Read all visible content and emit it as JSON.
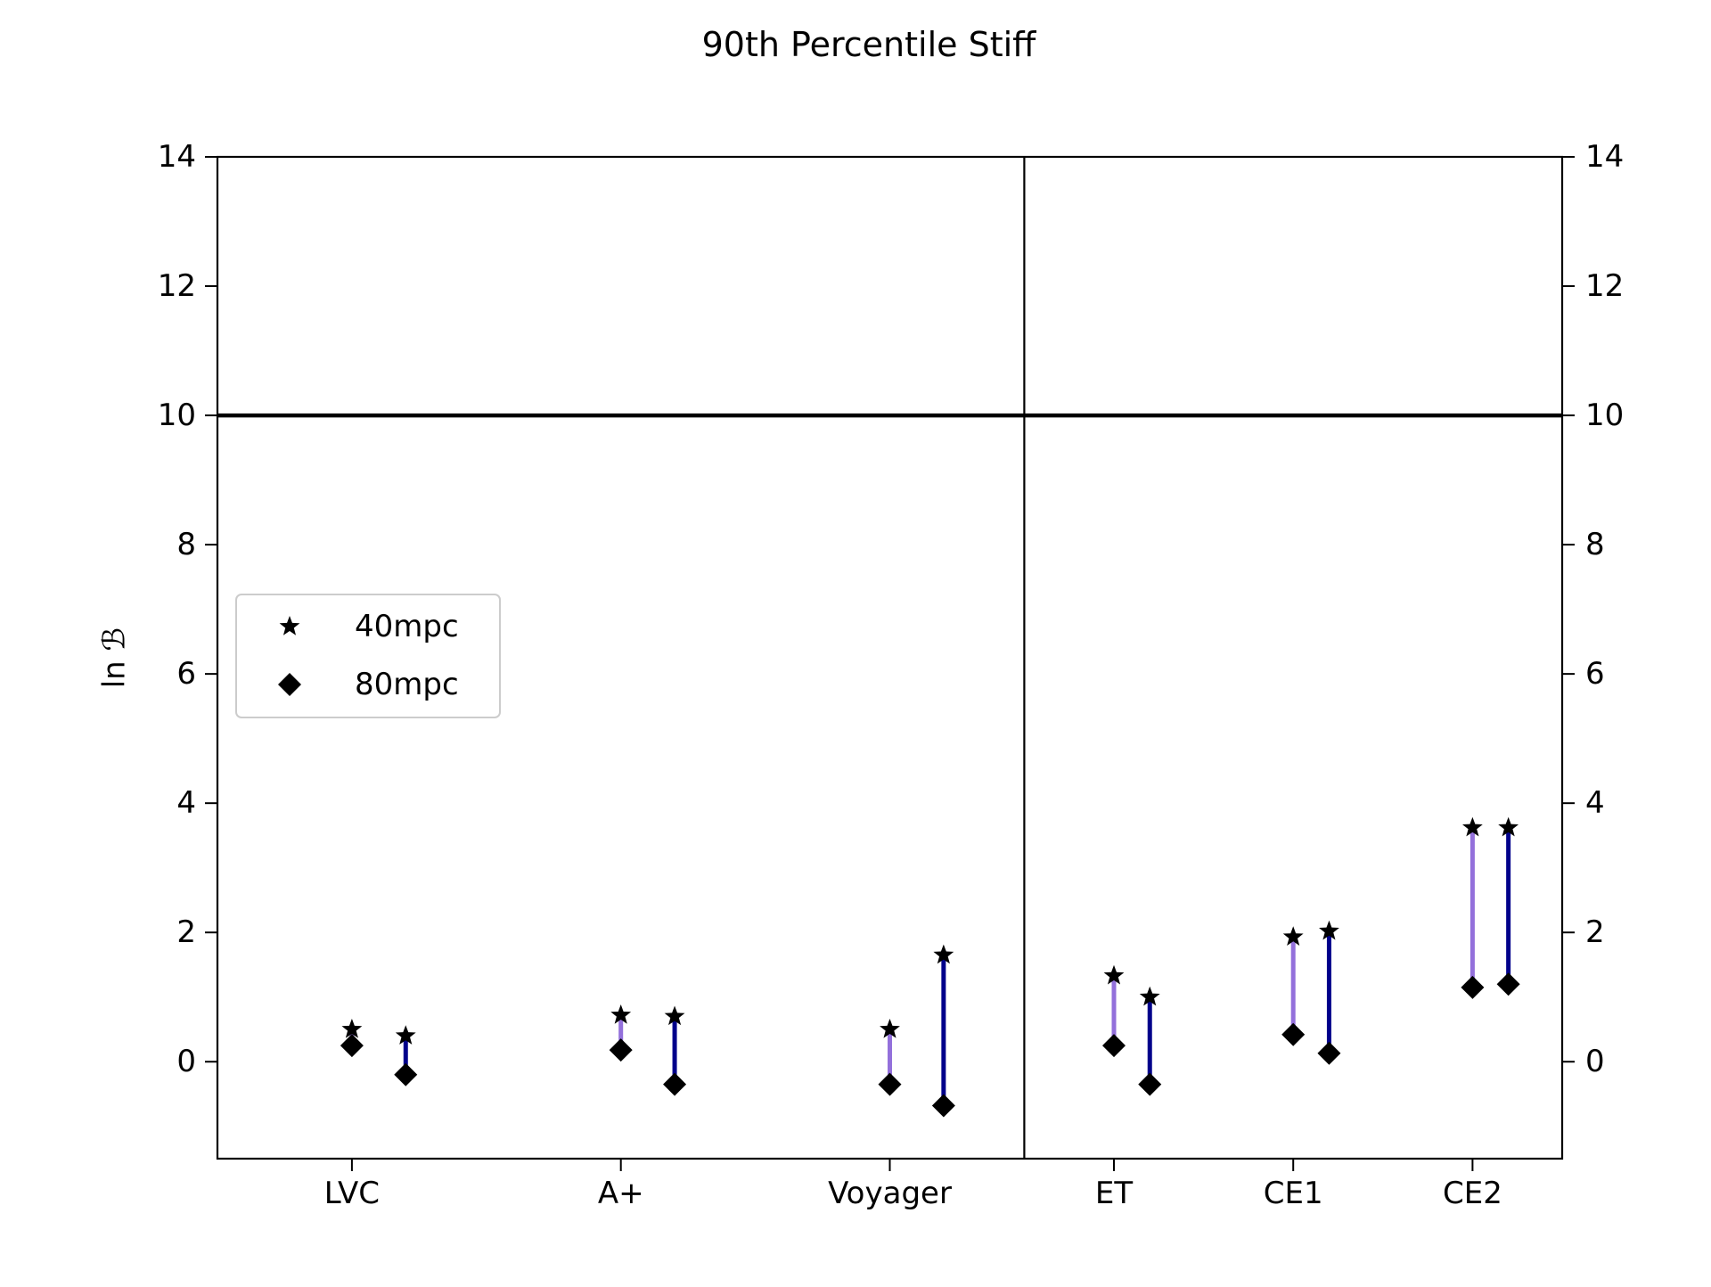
{
  "chart_data": {
    "type": "scatter",
    "title": "90th Percentile Stiff",
    "ylabel": "ln ℬ",
    "xlabel": "",
    "ylim": [
      -1.5,
      14
    ],
    "yticks": [
      0,
      2,
      4,
      6,
      8,
      10,
      12,
      14
    ],
    "right_axis_ticks": true,
    "x_range": [
      -0.75,
      6.75
    ],
    "divider_x": 3.75,
    "reference_line_y": 10,
    "categories": [
      "LVC",
      "A+",
      "Voyager",
      "ET",
      "CE1",
      "CE2"
    ],
    "category_x": [
      0,
      1.5,
      3,
      4.25,
      5.25,
      6.25
    ],
    "legend": {
      "position": "center-left",
      "entries": [
        {
          "label": "40mpc",
          "marker": "star"
        },
        {
          "label": "80mpc",
          "marker": "diamond"
        }
      ]
    },
    "colors": {
      "first_connector": "#9370db",
      "second_connector": "#00008b",
      "markers": "#000000"
    },
    "pairs": [
      {
        "category": "LVC",
        "x": 0.0,
        "star": 0.5,
        "diamond": 0.25,
        "color": "#9370db"
      },
      {
        "category": "LVC",
        "x": 0.3,
        "star": 0.4,
        "diamond": -0.2,
        "color": "#00008b"
      },
      {
        "category": "A+",
        "x": 1.5,
        "star": 0.72,
        "diamond": 0.18,
        "color": "#9370db"
      },
      {
        "category": "A+",
        "x": 1.8,
        "star": 0.7,
        "diamond": -0.35,
        "color": "#00008b"
      },
      {
        "category": "Voyager",
        "x": 3.0,
        "star": 0.5,
        "diamond": -0.35,
        "color": "#9370db"
      },
      {
        "category": "Voyager",
        "x": 3.3,
        "star": 1.65,
        "diamond": -0.68,
        "color": "#00008b"
      },
      {
        "category": "ET",
        "x": 4.25,
        "star": 1.33,
        "diamond": 0.25,
        "color": "#9370db"
      },
      {
        "category": "ET",
        "x": 4.45,
        "star": 1.0,
        "diamond": -0.35,
        "color": "#00008b"
      },
      {
        "category": "CE1",
        "x": 5.25,
        "star": 1.93,
        "diamond": 0.42,
        "color": "#9370db"
      },
      {
        "category": "CE1",
        "x": 5.45,
        "star": 2.02,
        "diamond": 0.13,
        "color": "#00008b"
      },
      {
        "category": "CE2",
        "x": 6.25,
        "star": 3.62,
        "diamond": 1.15,
        "color": "#9370db"
      },
      {
        "category": "CE2",
        "x": 6.45,
        "star": 3.62,
        "diamond": 1.2,
        "color": "#00008b"
      }
    ]
  }
}
